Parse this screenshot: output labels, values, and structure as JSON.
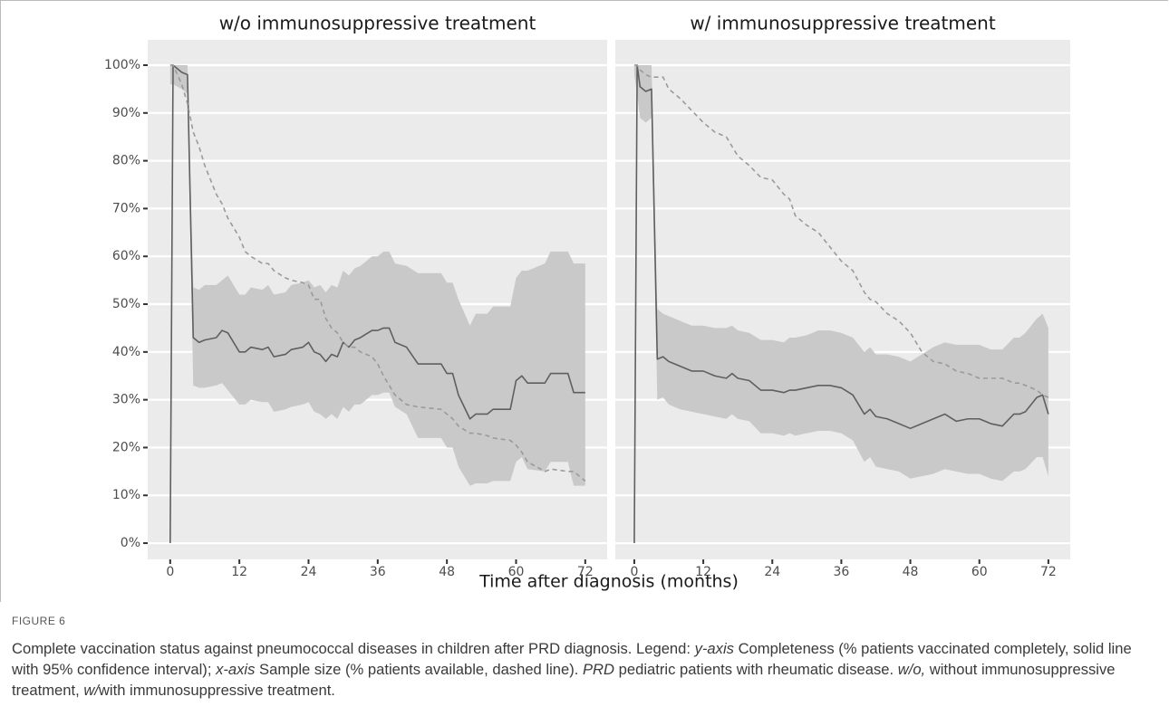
{
  "figure_label": "FIGURE 6",
  "xlabel": "Time after diagnosis (months)",
  "caption": [
    "Complete vaccination status against pneumococcal diseases in children after PRD diagnosis. Legend: ",
    "y-axis",
    " Completeness (% patients vaccinated completely, solid line with 95% confidence interval); ",
    "x-axis",
    " Sample size (% patients available, dashed line). ",
    "PRD",
    " pediatric patients with rheumatic disease. ",
    "w/o,",
    " without immunosuppressive treatment, ",
    "w/",
    "with immunosuppressive treatment."
  ],
  "chart_data": [
    {
      "type": "line",
      "title": "w/o immunosuppressive treatment",
      "background": "#ebebeb",
      "band_color": "#c9c9c9",
      "grid": true,
      "xlim": [
        -3.9,
        75.8
      ],
      "xticks": [
        0,
        12,
        24,
        36,
        48,
        60,
        72
      ],
      "ylim": [
        -3.4,
        105.3
      ],
      "yticks": [
        {
          "value": 0,
          "label": "0%"
        },
        {
          "value": 10,
          "label": "10%"
        },
        {
          "value": 20,
          "label": "20%"
        },
        {
          "value": 30,
          "label": "30%"
        },
        {
          "value": 40,
          "label": "40%"
        },
        {
          "value": 50,
          "label": "50%"
        },
        {
          "value": 60,
          "label": "60%"
        },
        {
          "value": 70,
          "label": "70%"
        },
        {
          "value": 80,
          "label": "80%"
        },
        {
          "value": 90,
          "label": "90%"
        },
        {
          "value": 100,
          "label": "100%"
        }
      ],
      "x": [
        0,
        0.5,
        2,
        3,
        4,
        5,
        6,
        8,
        9,
        10,
        12,
        13,
        14,
        16,
        17,
        18,
        20,
        21,
        23,
        24,
        25,
        26,
        27,
        28,
        29,
        30,
        31,
        32,
        33,
        35,
        36,
        37,
        38,
        39,
        41,
        43,
        47,
        48,
        49,
        50,
        52,
        53,
        55,
        56,
        59,
        60,
        61,
        62,
        65,
        66,
        69,
        70,
        72
      ],
      "series": [
        {
          "color": "#5f5f5f",
          "values": [
            0,
            100,
            98.5,
            98,
            43,
            42,
            42.5,
            43,
            44.5,
            44,
            40,
            40,
            41,
            40.5,
            41,
            39,
            39.5,
            40.5,
            41,
            42,
            40,
            39.5,
            38,
            39.5,
            39,
            42,
            41,
            42.5,
            43,
            44.5,
            44.5,
            45,
            45,
            42,
            41,
            37.5,
            37.5,
            35.5,
            35.5,
            31,
            26,
            27,
            27,
            28,
            28,
            34,
            35,
            33.5,
            33.5,
            35.5,
            35.5,
            31.5,
            31.5
          ],
          "upper": [
            100,
            100,
            100,
            100,
            53.5,
            53,
            54,
            54,
            55,
            56,
            52,
            52,
            53.5,
            53,
            54,
            52,
            52.5,
            54,
            54.5,
            55,
            53.5,
            54,
            52.5,
            54,
            53.5,
            57,
            56,
            57.5,
            58,
            60,
            60,
            61,
            61,
            58.5,
            58,
            56.5,
            56.5,
            54.5,
            54.5,
            51,
            45.5,
            48,
            48,
            49.5,
            49.5,
            55.5,
            57,
            57,
            58.5,
            61,
            61,
            58.5,
            58.5
          ],
          "lower": [
            96,
            96,
            95,
            94,
            33,
            32.5,
            32.5,
            33,
            33.5,
            32,
            29,
            29,
            30,
            29.5,
            29.5,
            27.5,
            28,
            28.5,
            29,
            29.5,
            27.5,
            27,
            26,
            27,
            26,
            28.5,
            27.5,
            29,
            29,
            31,
            31,
            31.5,
            31.5,
            28.5,
            27,
            22,
            22,
            20,
            20,
            16,
            12,
            12.5,
            12.5,
            13,
            13,
            17,
            18,
            15.5,
            15,
            17,
            17,
            12,
            12
          ]
        },
        {
          "color": "#9a9a9a",
          "dashed": true,
          "values": [
            100,
            100,
            96,
            92,
            86,
            83,
            79,
            73,
            71,
            68,
            64,
            61,
            60,
            58.5,
            58.5,
            57,
            55.5,
            55,
            54.5,
            54,
            51,
            51,
            47,
            45,
            44,
            42,
            41,
            41,
            40,
            39,
            37.5,
            35,
            33,
            31,
            29,
            28.5,
            28,
            27,
            26,
            24.5,
            23,
            23,
            22.5,
            22,
            21.5,
            20.5,
            19,
            17,
            15,
            15.5,
            15,
            15,
            13
          ]
        }
      ]
    },
    {
      "type": "line",
      "title": "w/ immunosuppressive treatment",
      "background": "#ebebeb",
      "band_color": "#c9c9c9",
      "grid": true,
      "xlim": [
        -3.3,
        75.8
      ],
      "xticks": [
        0,
        12,
        24,
        36,
        48,
        60,
        72
      ],
      "ylim": [
        -3.4,
        105.3
      ],
      "yticks": [
        0,
        10,
        20,
        30,
        40,
        50,
        60,
        70,
        80,
        90,
        100
      ],
      "x": [
        0,
        0.5,
        1,
        2,
        3,
        4,
        5,
        6,
        8,
        10,
        12,
        14,
        16,
        17,
        18,
        20,
        22,
        24,
        26,
        27,
        28,
        30,
        32,
        34,
        36,
        38,
        40,
        41,
        42,
        44,
        46,
        48,
        50,
        52,
        54,
        56,
        58,
        60,
        62,
        64,
        66,
        67,
        68,
        70,
        71,
        72
      ],
      "series": [
        {
          "color": "#5f5f5f",
          "values": [
            0,
            100,
            95.5,
            94.5,
            95,
            38.5,
            39,
            38,
            37,
            36,
            36,
            35,
            34.5,
            35.5,
            34.5,
            34,
            32,
            32,
            31.5,
            32,
            32,
            32.5,
            33,
            33,
            32.5,
            31,
            27,
            28,
            26.5,
            26,
            25,
            24,
            25,
            26,
            27,
            25.5,
            26,
            26,
            25,
            24.5,
            27,
            27,
            27.5,
            30.5,
            31,
            27
          ],
          "upper": [
            100,
            100,
            100,
            100,
            100,
            49,
            48,
            47.5,
            46.5,
            45.5,
            45.5,
            45,
            45,
            45.5,
            44.5,
            44,
            42.5,
            42.5,
            42,
            43,
            43,
            43.5,
            44.5,
            44.5,
            44,
            43,
            40,
            41,
            39.5,
            39.5,
            39,
            38,
            39.5,
            41,
            42,
            41.5,
            41.5,
            41.5,
            40.5,
            40.5,
            43,
            43,
            44,
            47,
            48,
            45
          ],
          "lower": [
            98,
            94,
            89,
            88,
            89,
            30,
            30.5,
            29,
            28,
            27.5,
            27,
            26.5,
            26,
            27,
            26,
            25.5,
            23,
            23,
            22.5,
            23,
            22.5,
            23,
            23.5,
            23.5,
            23,
            21.5,
            17,
            18,
            16,
            15.5,
            15,
            13.5,
            14,
            14.5,
            15.5,
            15,
            14.5,
            14.5,
            13.5,
            13,
            15,
            15,
            15.5,
            18,
            18,
            14
          ]
        },
        {
          "color": "#9a9a9a",
          "dashed": true,
          "values": [
            100,
            100,
            99,
            98,
            97.5,
            97.5,
            97.5,
            95,
            93,
            90.5,
            88,
            86,
            85,
            83,
            81,
            79,
            76.5,
            76,
            73,
            72,
            68.5,
            66.5,
            65,
            62,
            59,
            57,
            52.5,
            51,
            50.5,
            48,
            46.5,
            44,
            40,
            38,
            37.5,
            36,
            35.5,
            34.5,
            34.5,
            34.5,
            33.5,
            33.5,
            33,
            32,
            31,
            30.5
          ]
        }
      ]
    }
  ]
}
